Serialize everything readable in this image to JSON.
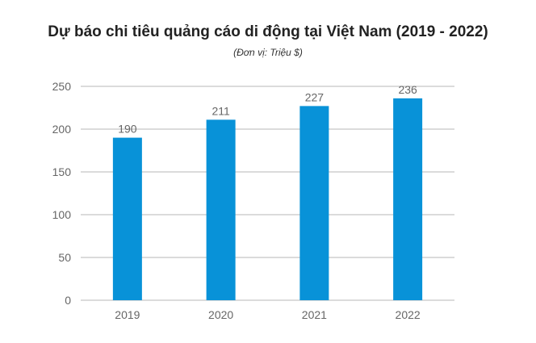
{
  "title": "Dự báo chi tiêu quảng cáo di động tại Việt Nam (2019 - 2022)",
  "subtitle": "(Đơn vị: Triệu $)",
  "colors": {
    "bar": "#0892d8",
    "grid": "#b7b7b7",
    "text": "#666666"
  },
  "chart_data": {
    "type": "bar",
    "categories": [
      "2019",
      "2020",
      "2021",
      "2022"
    ],
    "values": [
      190,
      211,
      227,
      236
    ],
    "data_labels": [
      "190",
      "211",
      "227",
      "236"
    ],
    "yticks": [
      "0",
      "50",
      "100",
      "150",
      "200",
      "250"
    ],
    "ylim": [
      0,
      250
    ],
    "grid": true,
    "legend": "none"
  }
}
